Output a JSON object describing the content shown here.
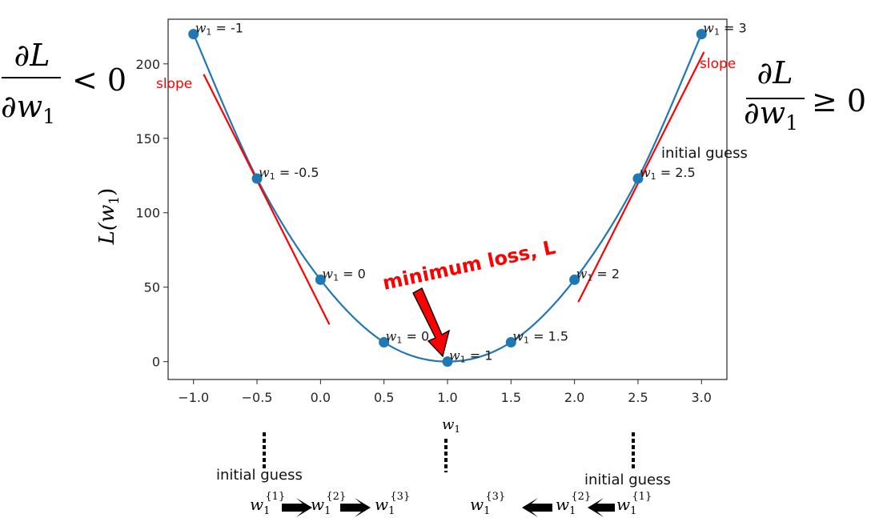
{
  "chart_data": {
    "type": "line",
    "xlabel": "w",
    "xlabel_sub": "1",
    "ylabel": "L(w",
    "ylabel_sub": "1",
    "ylabel_close": ")",
    "xlim": [
      -1.2,
      3.2
    ],
    "ylim": [
      -12,
      230
    ],
    "xticks": [
      -1.0,
      -0.5,
      0.0,
      0.5,
      1.0,
      1.5,
      2.0,
      2.5,
      3.0
    ],
    "xtick_labels": [
      "−1.0",
      "−0.5",
      "0.0",
      "0.5",
      "1.0",
      "1.5",
      "2.0",
      "2.5",
      "3.0"
    ],
    "yticks": [
      0,
      50,
      100,
      150,
      200
    ],
    "ytick_labels": [
      "0",
      "50",
      "100",
      "150",
      "200"
    ],
    "curve_color": "#1f77b4",
    "points": [
      {
        "x": -1.0,
        "y": 220,
        "label": "w",
        "sub": "1",
        "text": " = -1"
      },
      {
        "x": -0.5,
        "y": 123,
        "label": "w",
        "sub": "1",
        "text": " = -0.5"
      },
      {
        "x": 0.0,
        "y": 55,
        "label": "w",
        "sub": "1",
        "text": " = 0"
      },
      {
        "x": 0.5,
        "y": 13,
        "label": "w",
        "sub": "1",
        "text": " = 0.5"
      },
      {
        "x": 1.0,
        "y": 0,
        "label": "w",
        "sub": "1",
        "text": " = 1"
      },
      {
        "x": 1.5,
        "y": 13,
        "label": "w",
        "sub": "1",
        "text": " = 1.5"
      },
      {
        "x": 2.0,
        "y": 55,
        "label": "w",
        "sub": "1",
        "text": " = 2"
      },
      {
        "x": 2.5,
        "y": 123,
        "label": "w",
        "sub": "1",
        "text": " = 2.5"
      },
      {
        "x": 3.0,
        "y": 220,
        "label": "w",
        "sub": "1",
        "text": " = 3"
      }
    ],
    "tangent_lines": [
      {
        "x": [
          -0.92,
          0.07
        ],
        "y": [
          193,
          25
        ],
        "color": "#ff0000"
      },
      {
        "x": [
          2.03,
          3.02
        ],
        "y": [
          40,
          208
        ],
        "color": "#ff0000"
      }
    ]
  },
  "annotations": {
    "min_loss": "minimum loss, L",
    "slope_left": "slope",
    "slope_right": "slope",
    "initial_guess_top_right": "initial guess",
    "initial_guess_left": "initial guess",
    "initial_guess_right": "initial guess",
    "deriv_num": "∂L",
    "deriv_den": "∂w",
    "deriv_den_sub": "1",
    "deriv_left_rel": "< 0",
    "deriv_right_rel": "≥ 0",
    "accent_red": "#ff0000"
  },
  "sequences": {
    "left": [
      {
        "base": "w",
        "sub": "1",
        "sup": "{1}"
      },
      {
        "base": "w",
        "sub": "1",
        "sup": "{2}"
      },
      {
        "base": "w",
        "sub": "1",
        "sup": "{3}"
      }
    ],
    "right": [
      {
        "base": "w",
        "sub": "1",
        "sup": "{3}"
      },
      {
        "base": "w",
        "sub": "1",
        "sup": "{2}"
      },
      {
        "base": "w",
        "sub": "1",
        "sup": "{1}"
      }
    ]
  }
}
